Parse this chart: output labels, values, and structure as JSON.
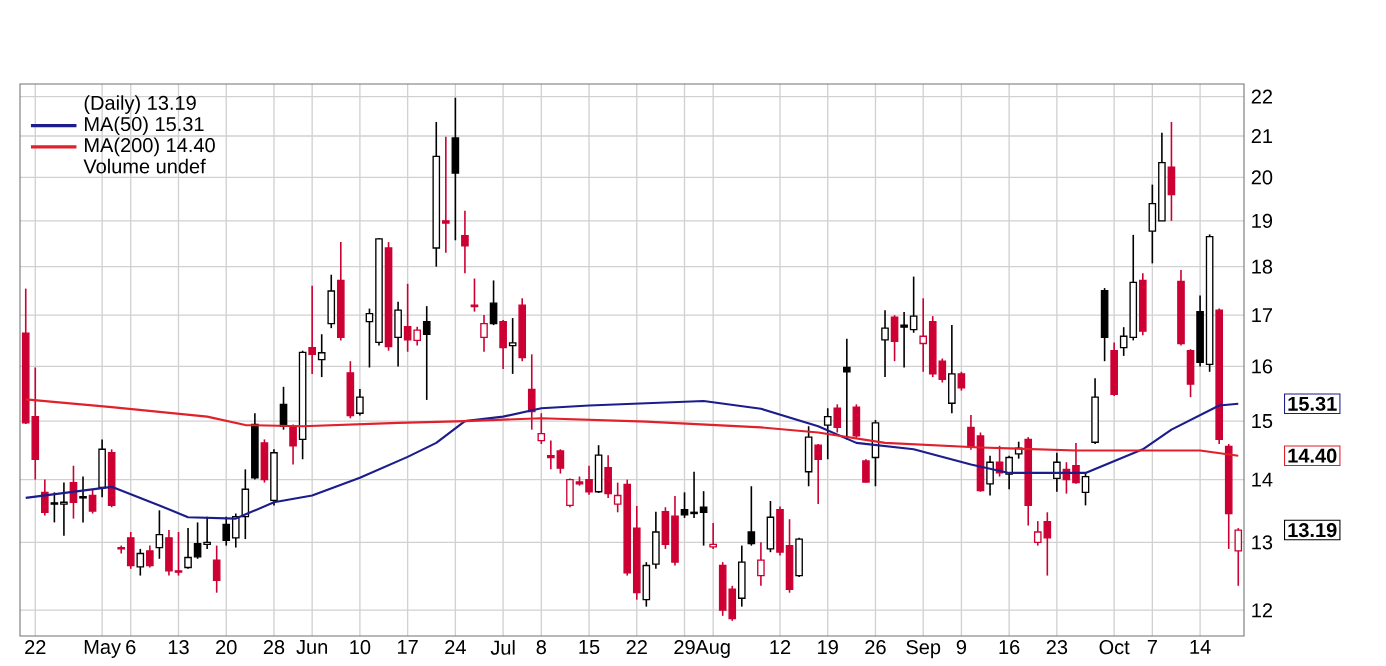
{
  "chart_data": {
    "type": "candlestick",
    "categories": [
      null,
      "22",
      null,
      null,
      null,
      null,
      null,
      null,
      "May",
      null,
      null,
      "6",
      null,
      null,
      null,
      null,
      "13",
      null,
      null,
      null,
      null,
      "20",
      null,
      null,
      null,
      null,
      "28",
      null,
      null,
      null,
      "Jun",
      null,
      null,
      null,
      null,
      "10",
      null,
      null,
      null,
      null,
      "17",
      null,
      null,
      null,
      null,
      "24",
      null,
      null,
      null,
      null,
      "Jul",
      null,
      null,
      null,
      "8",
      null,
      null,
      null,
      null,
      "15",
      null,
      null,
      null,
      null,
      "22",
      null,
      null,
      null,
      null,
      "29",
      null,
      null,
      "Aug",
      null,
      null,
      null,
      null,
      null,
      null,
      "12",
      null,
      null,
      null,
      null,
      "19",
      null,
      null,
      null,
      null,
      "26",
      null,
      null,
      null,
      null,
      "Sep",
      null,
      null,
      null,
      "9",
      null,
      null,
      null,
      null,
      "16",
      null,
      null,
      null,
      null,
      "23",
      null,
      null,
      null,
      null,
      null,
      "Oct",
      null,
      null,
      null,
      "7",
      null,
      null,
      null,
      null,
      "14",
      null,
      null,
      null,
      null
    ],
    "ohlc": [
      [
        16.64,
        17.54,
        14.95,
        14.97
      ],
      [
        15.08,
        15.98,
        14.0,
        14.34
      ],
      [
        13.79,
        14.0,
        13.42,
        13.47
      ],
      [
        13.6,
        13.79,
        13.31,
        13.62
      ],
      [
        13.6,
        13.95,
        13.1,
        13.63
      ],
      [
        13.95,
        14.23,
        13.37,
        13.63
      ],
      [
        13.7,
        14.05,
        13.31,
        13.72
      ],
      [
        13.74,
        13.84,
        13.45,
        13.49
      ],
      [
        13.87,
        14.68,
        13.71,
        14.51
      ],
      [
        14.45,
        14.51,
        13.55,
        13.58
      ],
      [
        12.92,
        12.95,
        12.83,
        12.9
      ],
      [
        13.07,
        13.16,
        12.6,
        12.65
      ],
      [
        12.63,
        12.9,
        12.5,
        12.83
      ],
      [
        12.87,
        12.95,
        12.62,
        12.65
      ],
      [
        12.92,
        13.5,
        12.75,
        13.12
      ],
      [
        13.07,
        13.19,
        12.5,
        12.57
      ],
      [
        12.57,
        13.16,
        12.5,
        12.55
      ],
      [
        12.62,
        13.22,
        12.6,
        12.77
      ],
      [
        12.98,
        13.31,
        12.75,
        12.78
      ],
      [
        12.97,
        13.4,
        12.9,
        13.0
      ],
      [
        12.73,
        12.95,
        12.25,
        12.43
      ],
      [
        13.28,
        13.4,
        12.95,
        13.03
      ],
      [
        13.07,
        13.45,
        12.92,
        13.4
      ],
      [
        13.4,
        14.17,
        13.05,
        13.84
      ],
      [
        14.94,
        15.14,
        14.0,
        14.03
      ],
      [
        14.62,
        14.68,
        13.95,
        14.0
      ],
      [
        13.66,
        14.51,
        13.58,
        14.45
      ],
      [
        15.3,
        15.62,
        14.85,
        14.91
      ],
      [
        14.91,
        14.94,
        14.25,
        14.57
      ],
      [
        14.68,
        16.3,
        14.34,
        16.27
      ],
      [
        16.36,
        17.6,
        15.86,
        16.23
      ],
      [
        16.13,
        16.62,
        15.8,
        16.26
      ],
      [
        16.83,
        17.83,
        16.74,
        17.49
      ],
      [
        17.71,
        18.53,
        16.5,
        16.56
      ],
      [
        15.88,
        16.1,
        15.05,
        15.1
      ],
      [
        15.14,
        15.58,
        15.1,
        15.43
      ],
      [
        16.87,
        17.13,
        15.98,
        17.03
      ],
      [
        16.46,
        18.62,
        16.4,
        18.6
      ],
      [
        18.4,
        18.53,
        16.3,
        16.38
      ],
      [
        16.56,
        17.27,
        16.0,
        17.1
      ],
      [
        16.77,
        17.64,
        16.28,
        16.51
      ],
      [
        16.5,
        16.77,
        16.4,
        16.7
      ],
      [
        16.87,
        17.18,
        15.38,
        16.62
      ],
      [
        18.4,
        21.35,
        18.0,
        20.5
      ],
      [
        19.0,
        20.98,
        18.3,
        18.95
      ],
      [
        20.95,
        21.97,
        18.57,
        20.1
      ],
      [
        18.67,
        19.23,
        17.86,
        18.45
      ],
      [
        17.2,
        17.75,
        17.07,
        17.17
      ],
      [
        16.56,
        17.0,
        16.28,
        16.83
      ],
      [
        17.24,
        17.71,
        16.8,
        16.83
      ],
      [
        16.87,
        16.9,
        15.95,
        16.36
      ],
      [
        16.4,
        16.94,
        15.86,
        16.45
      ],
      [
        17.2,
        17.34,
        16.1,
        16.17
      ],
      [
        15.57,
        16.23,
        14.85,
        15.17
      ],
      [
        14.66,
        15.14,
        14.6,
        14.78
      ],
      [
        14.4,
        14.66,
        14.17,
        14.37
      ],
      [
        14.48,
        14.51,
        14.1,
        14.19
      ],
      [
        13.58,
        14.02,
        13.55,
        14.0
      ],
      [
        13.96,
        14.05,
        13.9,
        13.93
      ],
      [
        14.0,
        14.23,
        13.75,
        13.8
      ],
      [
        13.8,
        14.58,
        13.78,
        14.41
      ],
      [
        14.2,
        14.41,
        13.7,
        13.77
      ],
      [
        13.6,
        13.95,
        13.47,
        13.74
      ],
      [
        13.92,
        14.0,
        12.5,
        12.54
      ],
      [
        13.22,
        13.57,
        12.15,
        12.25
      ],
      [
        12.15,
        12.7,
        12.05,
        12.65
      ],
      [
        12.67,
        13.48,
        12.6,
        13.16
      ],
      [
        13.48,
        13.55,
        12.9,
        12.97
      ],
      [
        13.41,
        13.73,
        12.65,
        12.7
      ],
      [
        13.51,
        13.79,
        13.38,
        13.43
      ],
      [
        13.47,
        14.13,
        13.38,
        13.45
      ],
      [
        13.55,
        13.81,
        12.95,
        13.47
      ],
      [
        12.93,
        13.3,
        12.9,
        12.97
      ],
      [
        12.65,
        12.7,
        11.92,
        12.0
      ],
      [
        12.3,
        12.35,
        11.85,
        11.88
      ],
      [
        12.17,
        12.95,
        12.05,
        12.7
      ],
      [
        13.16,
        13.89,
        12.95,
        12.98
      ],
      [
        12.5,
        13.0,
        12.35,
        12.73
      ],
      [
        12.9,
        13.65,
        12.85,
        13.39
      ],
      [
        13.51,
        13.56,
        12.8,
        12.85
      ],
      [
        12.95,
        13.36,
        12.25,
        12.3
      ],
      [
        12.5,
        13.07,
        12.48,
        13.05
      ],
      [
        14.13,
        14.91,
        13.89,
        14.72
      ],
      [
        14.58,
        14.6,
        13.6,
        14.34
      ],
      [
        14.93,
        15.23,
        14.34,
        15.08
      ],
      [
        15.23,
        15.3,
        14.8,
        14.89
      ],
      [
        15.98,
        16.53,
        14.68,
        15.9
      ],
      [
        15.25,
        15.3,
        14.7,
        14.74
      ],
      [
        14.31,
        14.34,
        13.95,
        13.96
      ],
      [
        14.37,
        15.02,
        13.89,
        14.97
      ],
      [
        16.51,
        17.1,
        15.8,
        16.74
      ],
      [
        16.96,
        17.0,
        16.1,
        16.48
      ],
      [
        16.8,
        17.06,
        15.98,
        16.76
      ],
      [
        16.71,
        17.79,
        16.65,
        16.98
      ],
      [
        16.44,
        17.34,
        15.9,
        16.58
      ],
      [
        16.87,
        16.98,
        15.8,
        15.86
      ],
      [
        16.1,
        16.15,
        15.7,
        15.76
      ],
      [
        15.32,
        16.8,
        15.14,
        15.86
      ],
      [
        15.86,
        15.9,
        15.55,
        15.6
      ],
      [
        14.89,
        15.11,
        14.5,
        14.55
      ],
      [
        14.74,
        14.8,
        13.8,
        13.82
      ],
      [
        13.93,
        14.4,
        13.74,
        14.29
      ],
      [
        14.29,
        14.57,
        14.05,
        14.11
      ],
      [
        14.09,
        14.4,
        13.84,
        14.37
      ],
      [
        14.43,
        14.64,
        14.35,
        14.53
      ],
      [
        14.68,
        14.72,
        13.26,
        13.58
      ],
      [
        13.0,
        13.33,
        12.95,
        13.16
      ],
      [
        13.32,
        13.47,
        12.5,
        13.07
      ],
      [
        14.02,
        14.45,
        13.8,
        14.29
      ],
      [
        14.17,
        14.29,
        13.77,
        14.0
      ],
      [
        14.23,
        14.62,
        13.93,
        13.95
      ],
      [
        13.79,
        14.12,
        13.58,
        14.05
      ],
      [
        14.63,
        15.78,
        14.6,
        15.43
      ],
      [
        17.5,
        17.55,
        16.1,
        16.56
      ],
      [
        16.3,
        16.46,
        15.45,
        15.48
      ],
      [
        16.36,
        16.76,
        16.2,
        16.58
      ],
      [
        16.56,
        18.69,
        16.5,
        17.67
      ],
      [
        17.71,
        17.86,
        16.6,
        16.68
      ],
      [
        18.77,
        19.83,
        18.07,
        19.39
      ],
      [
        19.0,
        21.08,
        19.0,
        20.35
      ],
      [
        20.24,
        21.35,
        19.0,
        19.6
      ],
      [
        17.69,
        17.93,
        16.4,
        16.44
      ],
      [
        16.3,
        16.33,
        15.43,
        15.67
      ],
      [
        17.07,
        17.4,
        16.0,
        16.08
      ],
      [
        16.04,
        18.7,
        15.9,
        18.65
      ],
      [
        17.1,
        17.13,
        14.6,
        14.68
      ],
      [
        14.56,
        14.6,
        12.9,
        13.45
      ],
      [
        12.87,
        13.22,
        12.35,
        13.19
      ]
    ],
    "colors": [
      "#cc0033",
      "#cc0033",
      "#cc0033",
      "#000000",
      "#000000",
      "#cc0033",
      "#000000",
      "#cc0033",
      "#000000",
      "#cc0033",
      "#cc0033",
      "#cc0033",
      "#000000",
      "#cc0033",
      "#000000",
      "#cc0033",
      "#cc0033",
      "#000000",
      "#000000",
      "#000000",
      "#cc0033",
      "#000000",
      "#000000",
      "#000000",
      "#000000",
      "#cc0033",
      "#000000",
      "#000000",
      "#cc0033",
      "#000000",
      "#cc0033",
      "#000000",
      "#000000",
      "#cc0033",
      "#cc0033",
      "#000000",
      "#000000",
      "#000000",
      "#cc0033",
      "#000000",
      "#cc0033",
      "#cc0033",
      "#000000",
      "#000000",
      "#cc0033",
      "#000000",
      "#cc0033",
      "#cc0033",
      "#cc0033",
      "#000000",
      "#cc0033",
      "#000000",
      "#cc0033",
      "#cc0033",
      "#cc0033",
      "#cc0033",
      "#cc0033",
      "#cc0033",
      "#cc0033",
      "#cc0033",
      "#000000",
      "#cc0033",
      "#cc0033",
      "#cc0033",
      "#cc0033",
      "#000000",
      "#000000",
      "#cc0033",
      "#cc0033",
      "#000000",
      "#000000",
      "#000000",
      "#cc0033",
      "#cc0033",
      "#cc0033",
      "#000000",
      "#000000",
      "#cc0033",
      "#000000",
      "#cc0033",
      "#cc0033",
      "#000000",
      "#000000",
      "#cc0033",
      "#000000",
      "#cc0033",
      "#000000",
      "#cc0033",
      "#cc0033",
      "#000000",
      "#000000",
      "#cc0033",
      "#000000",
      "#000000",
      "#cc0033",
      "#cc0033",
      "#cc0033",
      "#000000",
      "#cc0033",
      "#cc0033",
      "#cc0033",
      "#000000",
      "#cc0033",
      "#000000",
      "#000000",
      "#cc0033",
      "#cc0033",
      "#cc0033",
      "#000000",
      "#cc0033",
      "#cc0033",
      "#000000",
      "#000000",
      "#000000",
      "#cc0033",
      "#000000",
      "#000000",
      "#cc0033",
      "#000000",
      "#000000",
      "#cc0033",
      "#cc0033",
      "#cc0033",
      "#000000",
      "#000000",
      "#cc0033",
      "#cc0033",
      "#cc0033"
    ],
    "series": [
      {
        "name": "MA(50) 15.31",
        "type": "line",
        "color": "#1c1c8c",
        "values": [
          13.7,
          null,
          null,
          null,
          null,
          null,
          null,
          null,
          null,
          13.88,
          null,
          null,
          null,
          null,
          13.58,
          null,
          null,
          13.39,
          null,
          null,
          null,
          null,
          13.37,
          null,
          null,
          null,
          13.63,
          null,
          null,
          null,
          13.74,
          null,
          null,
          null,
          null,
          14.03,
          null,
          null,
          null,
          null,
          14.38,
          null,
          null,
          14.62,
          null,
          null,
          15.0,
          null,
          null,
          null,
          15.08,
          null,
          null,
          null,
          15.23,
          null,
          null,
          null,
          null,
          15.28,
          null,
          null,
          null,
          null,
          null,
          15.32,
          null,
          null,
          null,
          null,
          null,
          15.36,
          null,
          null,
          null,
          null,
          null,
          15.22,
          null,
          null,
          null,
          null,
          null,
          14.91,
          null,
          null,
          null,
          14.62,
          null,
          null,
          null,
          null,
          null,
          14.51,
          null,
          null,
          null,
          null,
          null,
          14.25,
          null,
          null,
          null,
          14.11,
          null,
          null,
          null,
          null,
          null,
          null,
          null,
          14.11,
          null,
          null,
          null,
          null,
          null,
          14.51,
          null,
          null,
          14.85,
          null,
          null,
          null,
          null,
          15.28,
          null,
          15.31
        ]
      },
      {
        "name": "MA(200) 14.40",
        "type": "line",
        "color": "#e0202a",
        "values": [
          15.39,
          null,
          null,
          null,
          null,
          null,
          null,
          null,
          null,
          15.25,
          null,
          null,
          null,
          null,
          null,
          null,
          null,
          null,
          null,
          15.08,
          null,
          null,
          null,
          14.93,
          null,
          null,
          null,
          null,
          null,
          14.91,
          null,
          null,
          null,
          null,
          null,
          null,
          null,
          null,
          null,
          14.97,
          null,
          null,
          null,
          null,
          null,
          null,
          15.0,
          null,
          null,
          null,
          null,
          null,
          null,
          null,
          15.05,
          null,
          null,
          null,
          null,
          null,
          null,
          null,
          null,
          null,
          null,
          14.99,
          null,
          null,
          null,
          null,
          null,
          null,
          null,
          null,
          null,
          null,
          null,
          14.89,
          null,
          null,
          null,
          null,
          null,
          14.8,
          null,
          null,
          null,
          null,
          null,
          null,
          14.62,
          null,
          null,
          null,
          null,
          null,
          null,
          null,
          null,
          null,
          14.54,
          null,
          null,
          null,
          null,
          null,
          null,
          null,
          null,
          null,
          14.49,
          null,
          null,
          null,
          null,
          null,
          null,
          14.49,
          null,
          null,
          null,
          null,
          null,
          14.49,
          null,
          null,
          null,
          14.4
        ]
      }
    ],
    "ylim": [
      11.64,
      22.33
    ],
    "yticks": [
      12,
      13,
      14,
      15,
      16,
      17,
      18,
      19,
      20,
      21,
      22
    ],
    "log": true,
    "grid": true,
    "legend": "top left",
    "annotations": [
      "(Daily) 13.19",
      "Volume undef",
      "15.31",
      "14.40",
      "13.19"
    ]
  }
}
